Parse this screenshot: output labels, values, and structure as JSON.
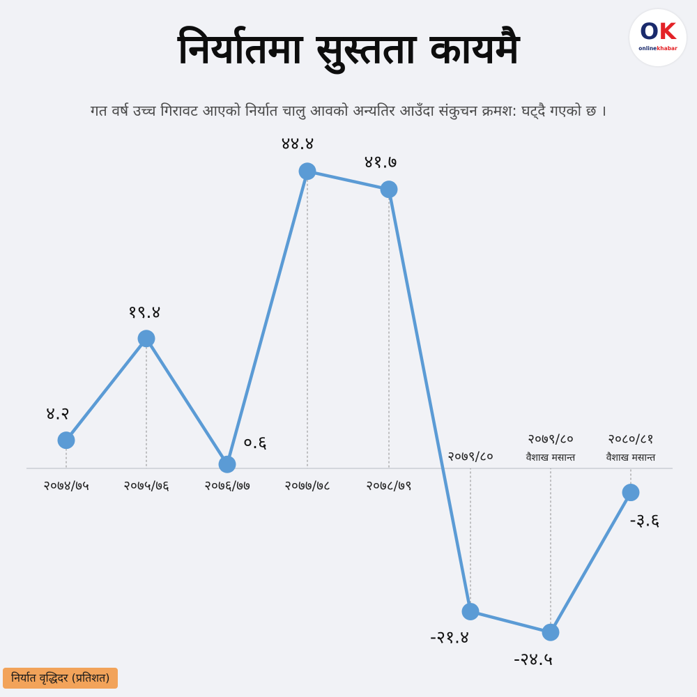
{
  "header": {
    "title": "निर्यातमा सुस्तता कायमै",
    "subtitle": "गत वर्ष उच्च गिरावट आएको निर्यात चालु आवको अन्यतिर आउँदा संकुचन क्रमश: घट्दै गएको छ ।"
  },
  "logo": {
    "mark_o": "O",
    "mark_k": "K",
    "text_online": "online",
    "text_khabar": "khabar"
  },
  "legend": {
    "label": "निर्यात वृद्धिदर  (प्रतिशत)"
  },
  "colors": {
    "line": "#5b9bd5",
    "background": "#f1f2f6",
    "legend_bg": "#f2a35a"
  },
  "chart_data": {
    "type": "line",
    "title": "",
    "ylabel": "निर्यात वृद्धिदर  (प्रतिशत)",
    "grid": false,
    "categories": [
      [
        "२०७४/७५"
      ],
      [
        "२०७५/७६"
      ],
      [
        "२०७६/७७"
      ],
      [
        "२०७७/७८"
      ],
      [
        "२०७८/७९"
      ],
      [
        "२०७९/८०"
      ],
      [
        "२०७९/८०",
        "वैशाख मसान्त"
      ],
      [
        "२०८०/८१",
        "वैशाख मसान्त"
      ]
    ],
    "values": [
      4.2,
      19.4,
      0.6,
      44.4,
      41.7,
      -21.4,
      -24.5,
      -3.6
    ],
    "value_labels": [
      "४.२",
      "१९.४",
      "०.६",
      "४४.४",
      "४१.७",
      "-२१.४",
      "-२४.५",
      "-३.६"
    ],
    "ylim": [
      -24.5,
      44.4
    ]
  }
}
